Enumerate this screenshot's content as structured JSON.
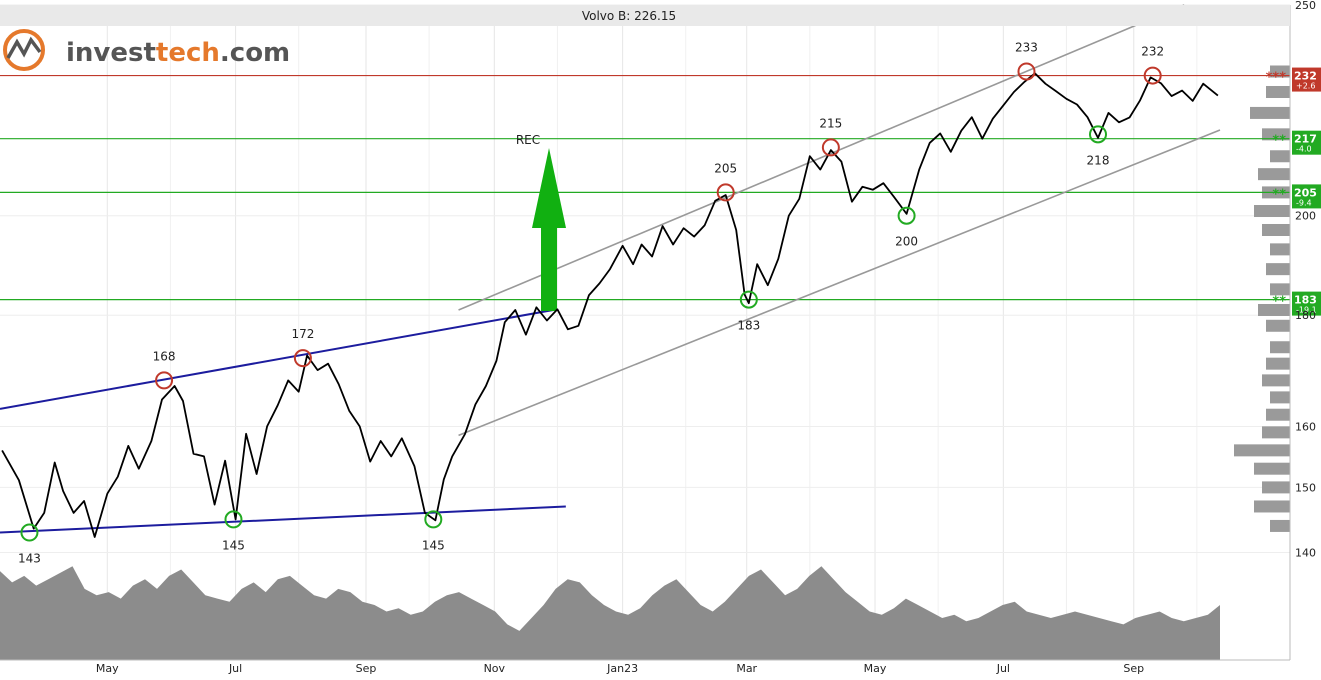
{
  "logo": {
    "prefix": "invest",
    "suffix": "tech",
    "domain": ".com"
  },
  "colors": {
    "price_line": "#000000",
    "resistance": "#c0392b",
    "support": "#22aa22",
    "trend_blue": "#1c1c9e",
    "channel": "#999999",
    "volume": "#8c8c8c",
    "signal_arrow": "#11b011",
    "logo_orange": "#e5792c",
    "logo_gray": "#555555"
  },
  "chart_data": {
    "type": "line",
    "title": "Volvo B: 226.15",
    "last_close": 226.15,
    "y_scale": "log",
    "ylim": [
      137,
      250
    ],
    "y_ticks": [
      140,
      150,
      160,
      180,
      200,
      250
    ],
    "x_ticks": [
      {
        "label": "May",
        "date": "2022-05-01"
      },
      {
        "label": "Jul",
        "date": "2022-07-01"
      },
      {
        "label": "Sep",
        "date": "2022-09-01"
      },
      {
        "label": "Nov",
        "date": "2022-11-01"
      },
      {
        "label": "Jan23",
        "date": "2023-01-01"
      },
      {
        "label": "Mar",
        "date": "2023-03-01"
      },
      {
        "label": "May",
        "date": "2023-05-01"
      },
      {
        "label": "Jul",
        "date": "2023-07-01"
      },
      {
        "label": "Sep",
        "date": "2023-09-01"
      }
    ],
    "x_range": [
      "2022-03-11",
      "2023-10-12"
    ],
    "grid": true,
    "series": [
      {
        "values": [
          [
            "2022-03-12",
            156
          ],
          [
            "2022-03-20",
            151
          ],
          [
            "2022-03-27",
            144
          ],
          [
            "2022-04-01",
            146
          ],
          [
            "2022-04-06",
            154
          ],
          [
            "2022-04-10",
            150
          ],
          [
            "2022-04-15",
            146
          ],
          [
            "2022-04-20",
            148
          ],
          [
            "2022-04-25",
            143
          ],
          [
            "2022-05-01",
            149
          ],
          [
            "2022-05-06",
            152
          ],
          [
            "2022-05-11",
            156
          ],
          [
            "2022-05-16",
            153
          ],
          [
            "2022-05-22",
            158
          ],
          [
            "2022-05-27",
            164
          ],
          [
            "2022-06-02",
            167
          ],
          [
            "2022-06-06",
            165
          ],
          [
            "2022-06-11",
            155
          ],
          [
            "2022-06-16",
            155
          ],
          [
            "2022-06-21",
            148
          ],
          [
            "2022-06-26",
            154
          ],
          [
            "2022-07-01",
            145
          ],
          [
            "2022-07-06",
            158
          ],
          [
            "2022-07-11",
            152
          ],
          [
            "2022-07-16",
            160
          ],
          [
            "2022-07-21",
            163
          ],
          [
            "2022-07-26",
            168
          ],
          [
            "2022-07-31",
            166
          ],
          [
            "2022-08-04",
            172
          ],
          [
            "2022-08-09",
            170
          ],
          [
            "2022-08-14",
            171
          ],
          [
            "2022-08-19",
            167
          ],
          [
            "2022-08-24",
            163
          ],
          [
            "2022-08-29",
            160
          ],
          [
            "2022-09-03",
            154
          ],
          [
            "2022-09-08",
            158
          ],
          [
            "2022-09-13",
            155
          ],
          [
            "2022-09-18",
            158
          ],
          [
            "2022-09-24",
            154
          ],
          [
            "2022-09-29",
            146
          ],
          [
            "2022-10-04",
            145
          ],
          [
            "2022-10-08",
            152
          ],
          [
            "2022-10-12",
            155
          ],
          [
            "2022-10-18",
            159
          ],
          [
            "2022-10-23",
            163
          ],
          [
            "2022-10-28",
            167
          ],
          [
            "2022-11-02",
            172
          ],
          [
            "2022-11-06",
            178
          ],
          [
            "2022-11-11",
            181
          ],
          [
            "2022-11-16",
            177
          ],
          [
            "2022-11-21",
            181
          ],
          [
            "2022-11-26",
            179
          ],
          [
            "2022-12-01",
            182
          ],
          [
            "2022-12-06",
            177
          ],
          [
            "2022-12-11",
            178
          ],
          [
            "2022-12-16",
            183
          ],
          [
            "2022-12-21",
            186
          ],
          [
            "2022-12-26",
            189
          ],
          [
            "2023-01-01",
            193
          ],
          [
            "2023-01-06",
            190
          ],
          [
            "2023-01-10",
            194
          ],
          [
            "2023-01-15",
            191
          ],
          [
            "2023-01-20",
            198
          ],
          [
            "2023-01-25",
            194
          ],
          [
            "2023-01-30",
            197
          ],
          [
            "2023-02-04",
            196
          ],
          [
            "2023-02-09",
            198
          ],
          [
            "2023-02-14",
            203
          ],
          [
            "2023-02-19",
            205
          ],
          [
            "2023-02-24",
            197
          ],
          [
            "2023-02-28",
            184
          ],
          [
            "2023-03-02",
            183
          ],
          [
            "2023-03-06",
            190
          ],
          [
            "2023-03-11",
            186
          ],
          [
            "2023-03-16",
            192
          ],
          [
            "2023-03-21",
            200
          ],
          [
            "2023-03-26",
            204
          ],
          [
            "2023-03-31",
            212
          ],
          [
            "2023-04-05",
            210
          ],
          [
            "2023-04-10",
            215
          ],
          [
            "2023-04-15",
            211
          ],
          [
            "2023-04-20",
            203
          ],
          [
            "2023-04-25",
            207
          ],
          [
            "2023-04-30",
            205
          ],
          [
            "2023-05-05",
            207
          ],
          [
            "2023-05-10",
            205
          ],
          [
            "2023-05-16",
            200
          ],
          [
            "2023-05-22",
            210
          ],
          [
            "2023-05-27",
            215
          ],
          [
            "2023-06-01",
            218
          ],
          [
            "2023-06-06",
            214
          ],
          [
            "2023-06-11",
            218
          ],
          [
            "2023-06-16",
            222
          ],
          [
            "2023-06-21",
            217
          ],
          [
            "2023-06-26",
            221
          ],
          [
            "2023-07-01",
            225
          ],
          [
            "2023-07-06",
            228
          ],
          [
            "2023-07-11",
            230
          ],
          [
            "2023-07-16",
            233
          ],
          [
            "2023-07-21",
            230
          ],
          [
            "2023-07-26",
            228
          ],
          [
            "2023-07-31",
            227
          ],
          [
            "2023-08-05",
            225
          ],
          [
            "2023-08-10",
            222
          ],
          [
            "2023-08-15",
            218
          ],
          [
            "2023-08-20",
            223
          ],
          [
            "2023-08-25",
            221
          ],
          [
            "2023-08-30",
            223
          ],
          [
            "2023-09-04",
            226
          ],
          [
            "2023-09-09",
            232
          ],
          [
            "2023-09-14",
            229
          ],
          [
            "2023-09-19",
            227
          ],
          [
            "2023-09-24",
            229
          ],
          [
            "2023-09-29",
            225
          ],
          [
            "2023-10-04",
            230
          ],
          [
            "2023-10-11",
            228
          ]
        ]
      }
    ],
    "volume_profile_note": "",
    "horizontal_levels": [
      {
        "value": 232,
        "kind": "resistance",
        "label": "232",
        "pct": "+2.6",
        "stars": "***"
      },
      {
        "value": 217,
        "kind": "support",
        "label": "217",
        "pct": "-4.0",
        "stars": "**"
      },
      {
        "value": 205,
        "kind": "support",
        "label": "205",
        "pct": "-9.4",
        "stars": "**"
      },
      {
        "value": 183,
        "kind": "support",
        "label": "183",
        "pct": "-19.1",
        "stars": "**"
      }
    ],
    "trend_lines": [
      {
        "kind": "blue",
        "from": [
          "2022-03-11",
          163
        ],
        "to": [
          "2022-11-29",
          181
        ]
      },
      {
        "kind": "blue",
        "from": [
          "2022-03-11",
          143
        ],
        "to": [
          "2022-12-05",
          147
        ]
      },
      {
        "kind": "channel",
        "from": [
          "2022-10-15",
          181
        ],
        "to": [
          "2023-09-25",
          250
        ]
      },
      {
        "kind": "channel",
        "from": [
          "2022-10-15",
          158.5
        ],
        "to": [
          "2023-10-12",
          219
        ]
      }
    ],
    "peaks": [
      {
        "date": "2022-05-28",
        "value": 168,
        "label": "168"
      },
      {
        "date": "2022-08-02",
        "value": 172,
        "label": "172"
      },
      {
        "date": "2023-02-19",
        "value": 205,
        "label": "205"
      },
      {
        "date": "2023-04-10",
        "value": 215,
        "label": "215"
      },
      {
        "date": "2023-07-12",
        "value": 233,
        "label": "233"
      },
      {
        "date": "2023-09-10",
        "value": 232,
        "label": "232"
      }
    ],
    "troughs": [
      {
        "date": "2022-03-25",
        "value": 143,
        "label": "143"
      },
      {
        "date": "2022-06-30",
        "value": 145,
        "label": "145"
      },
      {
        "date": "2022-10-03",
        "value": 145,
        "label": "145"
      },
      {
        "date": "2023-03-02",
        "value": 183,
        "label": "183"
      },
      {
        "date": "2023-05-16",
        "value": 200,
        "label": "200"
      },
      {
        "date": "2023-08-15",
        "value": 218,
        "label": "218"
      }
    ],
    "signal": {
      "label": "REC",
      "date": "2022-11-27"
    },
    "volume_profile": [
      {
        "value": 233,
        "weight": 0.1
      },
      {
        "value": 228,
        "weight": 0.12
      },
      {
        "value": 223,
        "weight": 0.2
      },
      {
        "value": 218,
        "weight": 0.14
      },
      {
        "value": 213,
        "weight": 0.1
      },
      {
        "value": 209,
        "weight": 0.16
      },
      {
        "value": 205,
        "weight": 0.14
      },
      {
        "value": 201,
        "weight": 0.18
      },
      {
        "value": 197,
        "weight": 0.14
      },
      {
        "value": 193,
        "weight": 0.1
      },
      {
        "value": 189,
        "weight": 0.12
      },
      {
        "value": 185,
        "weight": 0.1
      },
      {
        "value": 181,
        "weight": 0.16
      },
      {
        "value": 178,
        "weight": 0.12
      },
      {
        "value": 174,
        "weight": 0.1
      },
      {
        "value": 171,
        "weight": 0.12
      },
      {
        "value": 168,
        "weight": 0.14
      },
      {
        "value": 165,
        "weight": 0.1
      },
      {
        "value": 162,
        "weight": 0.12
      },
      {
        "value": 159,
        "weight": 0.14
      },
      {
        "value": 156,
        "weight": 0.28
      },
      {
        "value": 153,
        "weight": 0.18
      },
      {
        "value": 150,
        "weight": 0.14
      },
      {
        "value": 147,
        "weight": 0.18
      },
      {
        "value": 144,
        "weight": 0.1
      }
    ],
    "volume": [
      55,
      48,
      52,
      46,
      50,
      54,
      58,
      44,
      40,
      42,
      38,
      46,
      50,
      44,
      52,
      56,
      48,
      40,
      38,
      36,
      44,
      48,
      42,
      50,
      52,
      46,
      40,
      38,
      44,
      42,
      36,
      34,
      30,
      32,
      28,
      30,
      36,
      40,
      42,
      38,
      34,
      30,
      22,
      18,
      26,
      34,
      44,
      50,
      48,
      40,
      34,
      30,
      28,
      32,
      40,
      46,
      50,
      42,
      34,
      30,
      36,
      44,
      52,
      56,
      48,
      40,
      44,
      52,
      58,
      50,
      42,
      36,
      30,
      28,
      32,
      38,
      34,
      30,
      26,
      28,
      24,
      26,
      30,
      34,
      36,
      30,
      28,
      26,
      28,
      30,
      28,
      26,
      24,
      22,
      26,
      28,
      30,
      26,
      24,
      26,
      28,
      34
    ]
  }
}
